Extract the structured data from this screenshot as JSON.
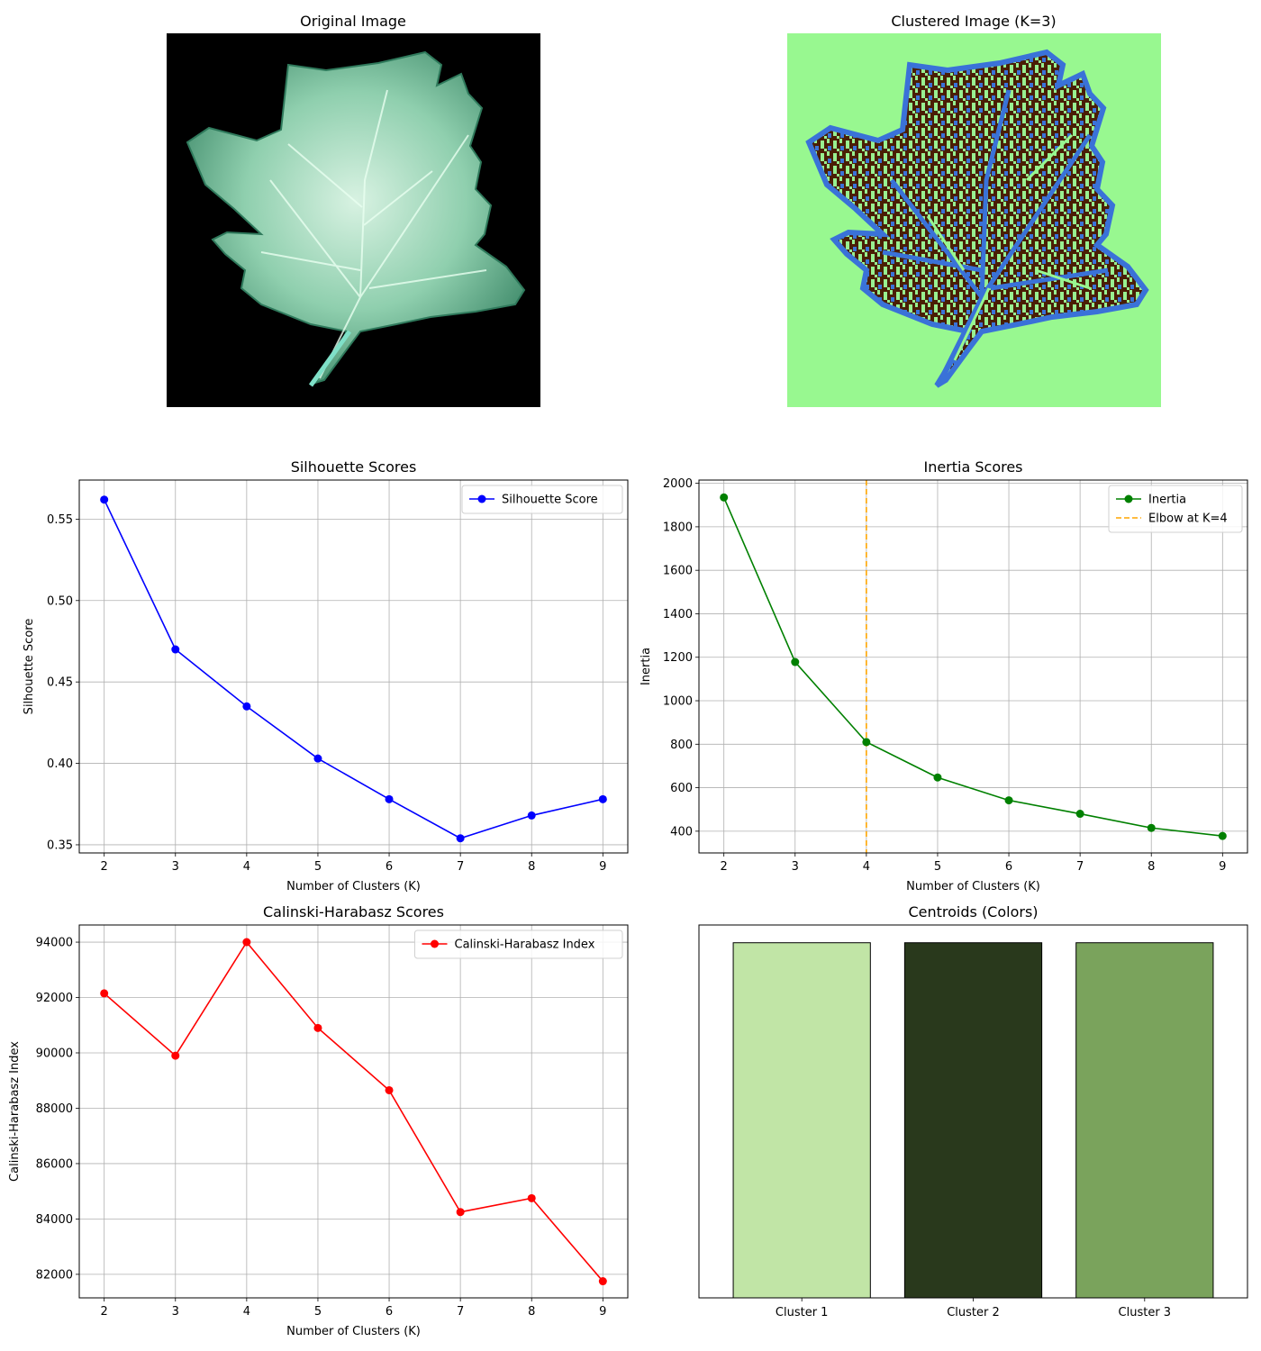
{
  "images": [
    {
      "title": "Original Image"
    },
    {
      "title": "Clustered Image (K=3)"
    }
  ],
  "chart_data": [
    {
      "type": "line",
      "title": "Silhouette Scores",
      "xlabel": "Number of Clusters (K)",
      "ylabel": "Silhouette Score",
      "x": [
        2,
        3,
        4,
        5,
        6,
        7,
        8,
        9
      ],
      "xticks": [
        "2",
        "3",
        "4",
        "5",
        "6",
        "7",
        "8",
        "9"
      ],
      "yticks": [
        "0.35",
        "0.40",
        "0.45",
        "0.50",
        "0.55"
      ],
      "ylim": [
        0.345,
        0.574
      ],
      "grid": true,
      "legend_position": "upper right",
      "series": [
        {
          "name": "Silhouette Score",
          "color": "#0000ff",
          "marker": "o",
          "values": [
            0.562,
            0.47,
            0.435,
            0.403,
            0.378,
            0.354,
            0.368,
            0.378
          ]
        }
      ]
    },
    {
      "type": "line",
      "title": "Inertia Scores",
      "xlabel": "Number of Clusters (K)",
      "ylabel": "Inertia",
      "x": [
        2,
        3,
        4,
        5,
        6,
        7,
        8,
        9
      ],
      "xticks": [
        "2",
        "3",
        "4",
        "5",
        "6",
        "7",
        "8",
        "9"
      ],
      "yticks": [
        "400",
        "600",
        "800",
        "1000",
        "1200",
        "1400",
        "1600",
        "1800",
        "2000"
      ],
      "ylim": [
        300,
        2015
      ],
      "grid": true,
      "legend_position": "upper right",
      "series": [
        {
          "name": "Inertia",
          "color": "#008000",
          "marker": "o",
          "values": [
            1935,
            1178,
            810,
            647,
            542,
            480,
            415,
            378
          ]
        }
      ],
      "vline": {
        "x": 4,
        "name": "Elbow at K=4",
        "color": "#ffa500",
        "style": "dashed"
      }
    },
    {
      "type": "line",
      "title": "Calinski-Harabasz Scores",
      "xlabel": "Number of Clusters (K)",
      "ylabel": "Calinski-Harabasz Index",
      "x": [
        2,
        3,
        4,
        5,
        6,
        7,
        8,
        9
      ],
      "xticks": [
        "2",
        "3",
        "4",
        "5",
        "6",
        "7",
        "8",
        "9"
      ],
      "yticks": [
        "82000",
        "84000",
        "86000",
        "88000",
        "90000",
        "92000",
        "94000"
      ],
      "ylim": [
        81150,
        94620
      ],
      "grid": true,
      "legend_position": "upper right",
      "series": [
        {
          "name": "Calinski-Harabasz Index",
          "color": "#ff0000",
          "marker": "o",
          "values": [
            92150,
            89900,
            94000,
            90900,
            88650,
            84250,
            84750,
            81750
          ]
        }
      ]
    },
    {
      "type": "bar",
      "title": "Centroids (Colors)",
      "categories": [
        "Cluster 1",
        "Cluster 2",
        "Cluster 3"
      ],
      "values": [
        1,
        1,
        1
      ],
      "ylim": [
        0,
        1.05
      ],
      "colors": [
        "#c1e5a6",
        "#29391c",
        "#7aa35c"
      ],
      "edge_color": "#000000"
    }
  ]
}
